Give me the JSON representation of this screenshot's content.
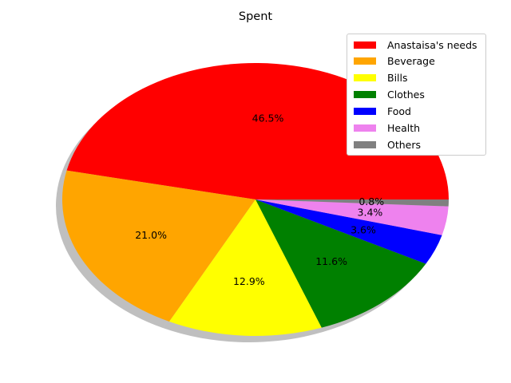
{
  "chart_data": {
    "type": "pie",
    "title": "Spent",
    "categories": [
      "Anastaisa's needs",
      "Beverage",
      "Bills",
      "Clothes",
      "Food",
      "Health",
      "Others"
    ],
    "values": [
      46.5,
      21.0,
      12.9,
      11.6,
      3.6,
      3.4,
      0.8
    ],
    "labels": [
      "46.5%",
      "21.0%",
      "12.9%",
      "11.6%",
      "3.6%",
      "3.4%",
      "0.8%"
    ],
    "colors": [
      "#ff0000",
      "#ffa500",
      "#ffff00",
      "#008000",
      "#0000ff",
      "#ee82ee",
      "#808080"
    ],
    "shadow": true,
    "legend_position": "top-right"
  }
}
